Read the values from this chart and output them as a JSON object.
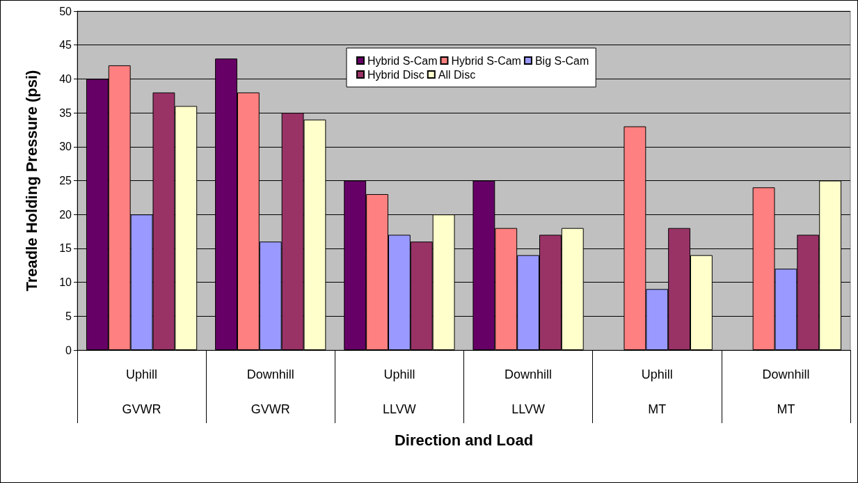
{
  "chart_data": {
    "type": "bar",
    "xlabel": "Direction and Load",
    "ylabel": "Treadle Holding Pressure (psi)",
    "categories": [
      "Uphill\nGVWR",
      "Downhill\nGVWR",
      "Uphill\nLLVW",
      "Downhill\nLLVW",
      "Uphill\nMT",
      "Downhill\nMT"
    ],
    "series": [
      {
        "name": "Hybrid S-Cam",
        "color": "#660066",
        "values": [
          40,
          43,
          25,
          25,
          null,
          null
        ]
      },
      {
        "name": "Hybrid S-Cam",
        "color": "#ff8080",
        "values": [
          42,
          38,
          23,
          18,
          33,
          24
        ]
      },
      {
        "name": "Big S-Cam",
        "color": "#9999ff",
        "values": [
          20,
          16,
          17,
          14,
          9,
          12
        ]
      },
      {
        "name": "Hybrid Disc",
        "color": "#993366",
        "values": [
          38,
          35,
          16,
          17,
          18,
          17
        ]
      },
      {
        "name": "All Disc",
        "color": "#ffffcc",
        "values": [
          36,
          34,
          20,
          18,
          14,
          25
        ]
      }
    ],
    "ylim": [
      0,
      50
    ],
    "yticks": [
      0,
      5,
      10,
      15,
      20,
      25,
      30,
      35,
      40,
      45,
      50
    ],
    "grid": "y",
    "legend": "top right"
  }
}
